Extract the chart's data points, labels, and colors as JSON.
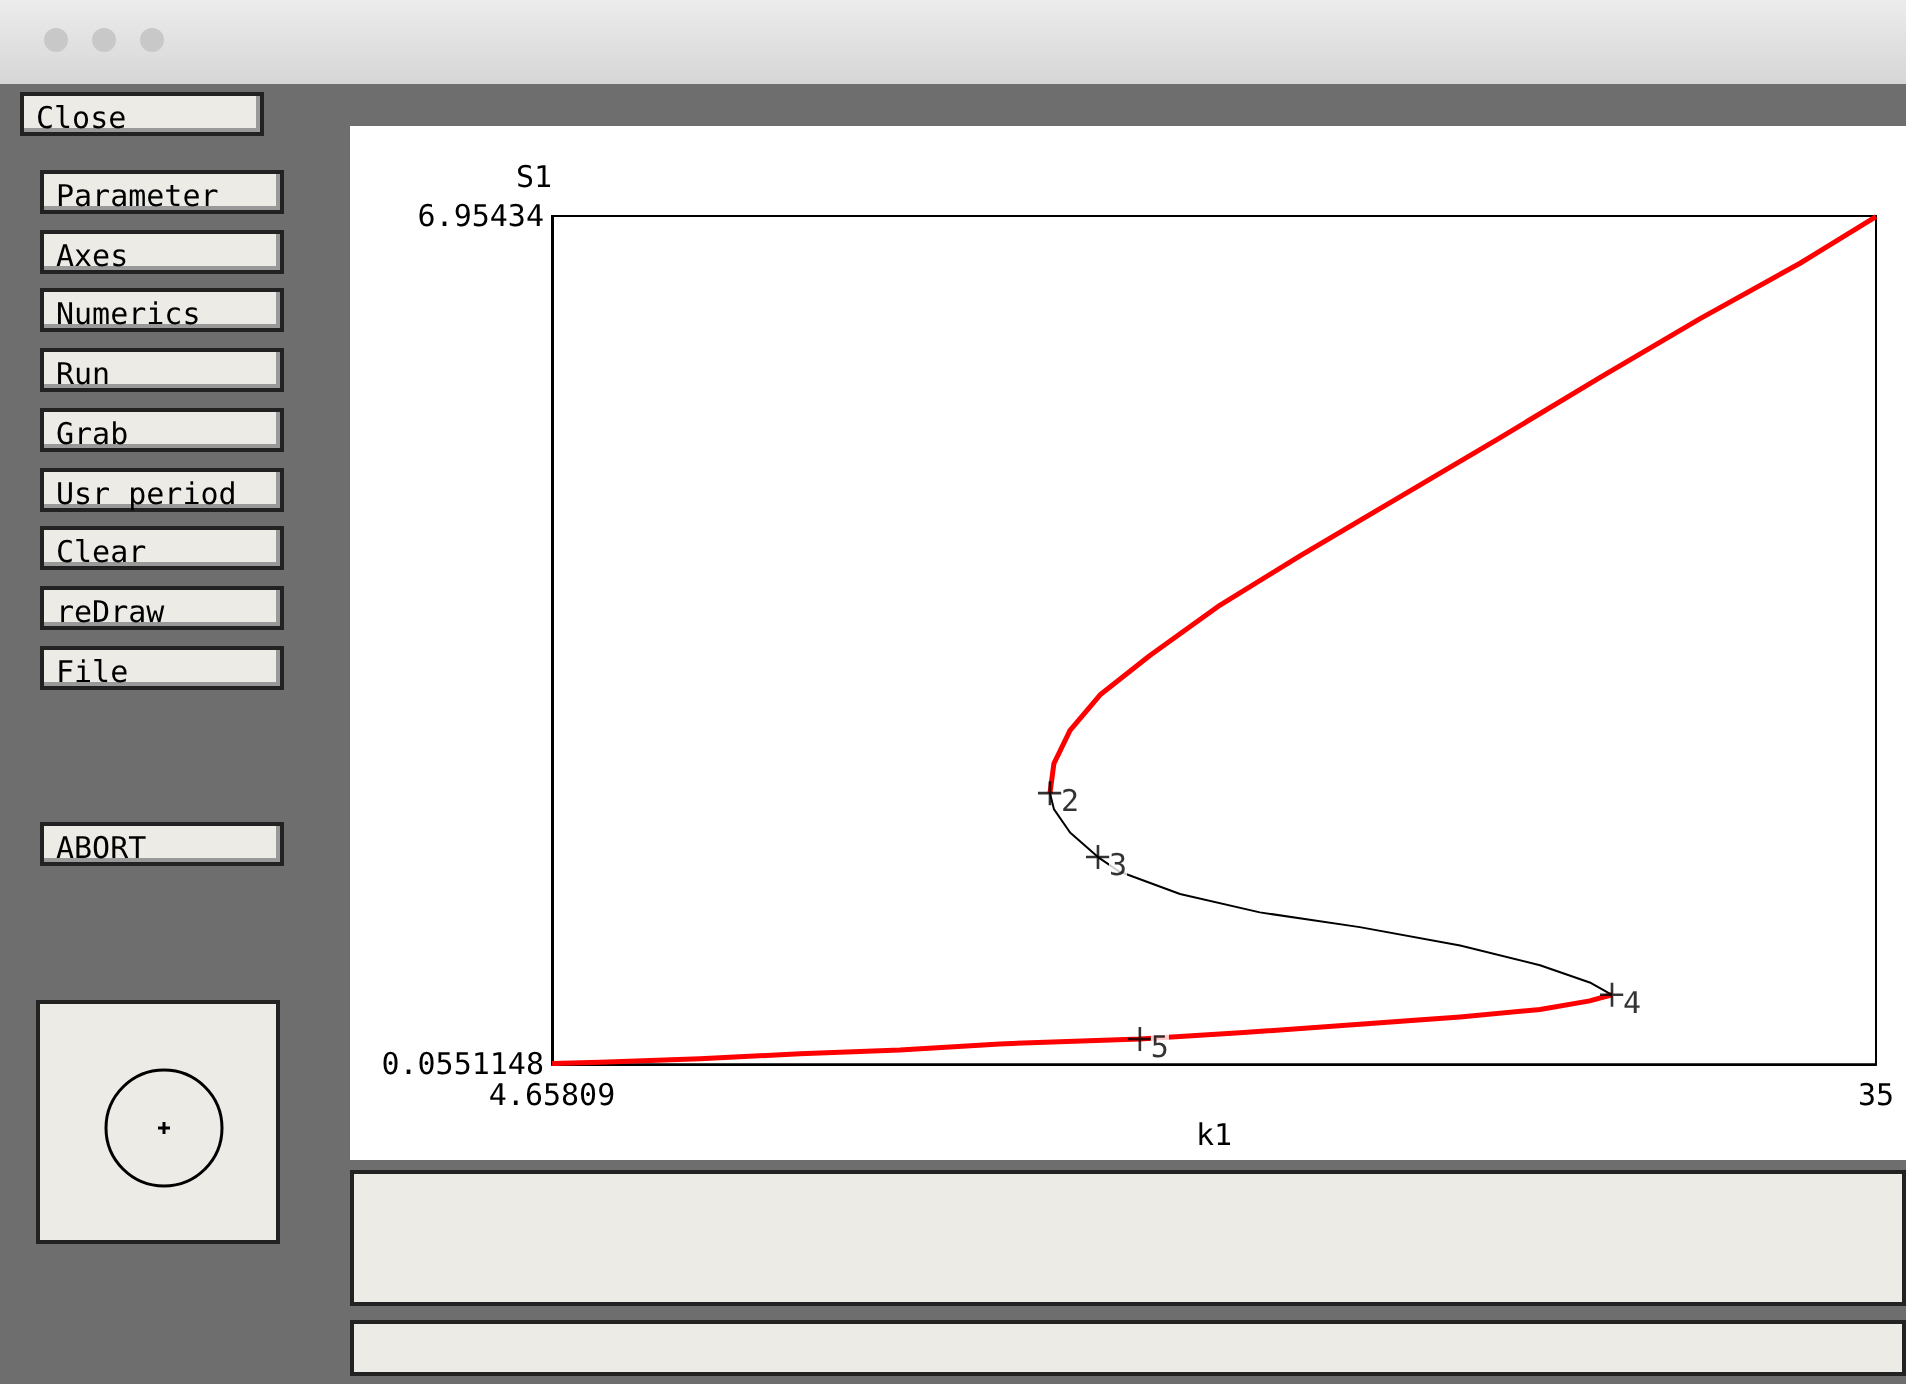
{
  "chart_data": {
    "type": "line",
    "xlabel": "k1",
    "ylabel": "S1",
    "xlim": [
      4.65809,
      35
    ],
    "xticks": [
      4.65809,
      35
    ],
    "ylim": [
      0.0551148,
      6.95434
    ],
    "yticks": [
      0.0551148,
      6.95434
    ],
    "grid": false,
    "marker": "none",
    "line_style": "solid",
    "series": [
      {
        "color": "#ff0000",
        "x": [
          4.66,
          5.76,
          8.05,
          10.34,
          12.63,
          14.92,
          18.13,
          20.42,
          23.17,
          25.47,
          27.3,
          28.44,
          28.95
        ],
        "values": [
          0.06,
          0.07,
          0.1,
          0.14,
          0.17,
          0.22,
          0.26,
          0.31,
          0.38,
          0.44,
          0.5,
          0.57,
          0.62
        ]
      },
      {
        "color": "#000000",
        "x": [
          28.95,
          28.44,
          27.3,
          25.47,
          23.17,
          20.88,
          19.05,
          17.67,
          17.17,
          16.53,
          16.16,
          16.07
        ],
        "values": [
          0.62,
          0.72,
          0.86,
          1.02,
          1.17,
          1.29,
          1.44,
          1.62,
          1.74,
          1.94,
          2.13,
          2.26
        ]
      },
      {
        "color": "#ff0000",
        "x": [
          16.07,
          16.16,
          16.53,
          17.22,
          18.36,
          19.97,
          21.8,
          24.09,
          26.38,
          28.67,
          30.97,
          33.26,
          35
        ],
        "values": [
          2.26,
          2.5,
          2.77,
          3.06,
          3.38,
          3.79,
          4.19,
          4.67,
          5.15,
          5.64,
          6.12,
          6.57,
          6.95
        ]
      }
    ],
    "annotations": [
      "Close",
      "Parameter",
      "Axes",
      "Numerics",
      "Run",
      "Grab",
      "Usr period",
      "Clear",
      "reDraw",
      "File",
      "ABORT",
      {
        "text": "2",
        "x": 16.07,
        "y": 2.26
      },
      {
        "text": "3",
        "x": 17.17,
        "y": 1.74
      },
      {
        "text": "4",
        "x": 28.95,
        "y": 0.62
      },
      {
        "text": "5",
        "x": 18.13,
        "y": 0.26
      }
    ]
  }
}
